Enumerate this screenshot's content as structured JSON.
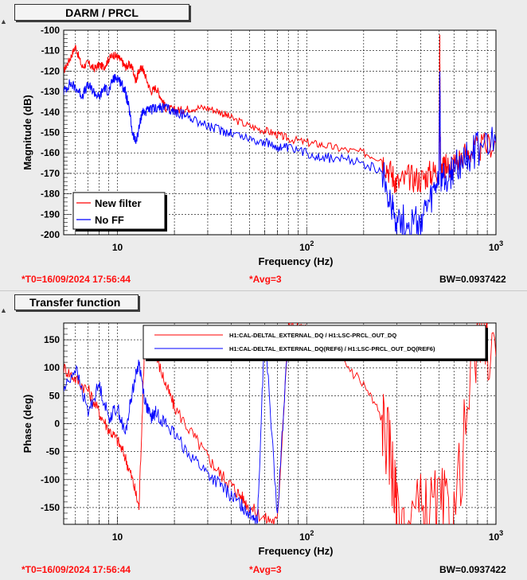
{
  "top_panel": {
    "title": "DARM / PRCL",
    "footer": {
      "t0": "*T0=16/09/2024 17:56:44",
      "avg": "*Avg=3",
      "bw": "BW=0.0937422"
    }
  },
  "bottom_panel": {
    "title": "Transfer function",
    "footer": {
      "t0": "*T0=16/09/2024 17:56:44",
      "avg": "*Avg=3",
      "bw": "BW=0.0937422"
    }
  },
  "colors": {
    "series_new": "#ff0000",
    "series_ref": "#0000ff",
    "grid": "#000000"
  },
  "icons": {
    "corner": "triangle-up-icon"
  },
  "chart_data": [
    {
      "type": "line",
      "xscale": "log",
      "xlabel": "Frequency (Hz)",
      "ylabel": "Magnitude (dB)",
      "xlim": [
        5.2,
        1000
      ],
      "ylim": [
        -200,
        -100
      ],
      "xticks": [
        "10",
        "10²",
        "10³"
      ],
      "yticks": [
        "-100",
        "-110",
        "-120",
        "-130",
        "-140",
        "-150",
        "-160",
        "-170",
        "-180",
        "-190",
        "-200"
      ],
      "grid": true,
      "legend_position": "bottom-left",
      "series": [
        {
          "name": "New filter",
          "color": "#ff0000",
          "x": [
            5.2,
            5.6,
            6,
            6.5,
            7,
            7.5,
            8,
            8.5,
            9,
            9.5,
            10,
            10.5,
            11,
            11.5,
            12,
            12.5,
            13,
            13.5,
            14,
            15,
            16,
            17,
            18,
            20,
            22,
            25,
            30,
            35,
            40,
            50,
            60,
            70,
            80,
            100,
            120,
            150,
            200,
            250,
            280,
            300,
            350,
            400,
            450,
            500,
            505,
            510,
            550,
            600,
            700,
            800,
            1000
          ],
          "y": [
            -120,
            -114,
            -108,
            -118,
            -116,
            -119,
            -117,
            -118,
            -114,
            -112,
            -113,
            -115,
            -118,
            -117,
            -118,
            -125,
            -120,
            -118,
            -122,
            -130,
            -128,
            -133,
            -138,
            -139,
            -139,
            -138,
            -138,
            -140,
            -143,
            -147,
            -149,
            -151,
            -153,
            -155,
            -156,
            -158,
            -160,
            -163,
            -170,
            -175,
            -172,
            -173,
            -170,
            -168,
            -106,
            -168,
            -167,
            -165,
            -160,
            -158,
            -155
          ]
        },
        {
          "name": "No FF",
          "color": "#0000ff",
          "x": [
            5.2,
            5.6,
            6,
            6.5,
            7,
            7.5,
            8,
            8.5,
            9,
            9.5,
            10,
            10.5,
            11,
            11.5,
            12,
            12.5,
            13,
            13.5,
            14,
            15,
            16,
            17,
            18,
            20,
            22,
            25,
            30,
            35,
            40,
            50,
            60,
            70,
            80,
            100,
            120,
            150,
            200,
            250,
            280,
            300,
            350,
            400,
            450,
            500,
            505,
            510,
            550,
            600,
            700,
            800,
            1000
          ],
          "y": [
            -130,
            -126,
            -128,
            -132,
            -127,
            -130,
            -133,
            -128,
            -130,
            -124,
            -123,
            -126,
            -130,
            -138,
            -150,
            -155,
            -148,
            -140,
            -140,
            -139,
            -138,
            -138,
            -138,
            -140,
            -141,
            -143,
            -147,
            -149,
            -150,
            -153,
            -155,
            -157,
            -158,
            -160,
            -162,
            -163,
            -165,
            -170,
            -185,
            -192,
            -195,
            -193,
            -185,
            -172,
            -125,
            -172,
            -172,
            -168,
            -162,
            -158,
            -155
          ]
        }
      ]
    },
    {
      "type": "line",
      "xscale": "log",
      "xlabel": "Frequency (Hz)",
      "ylabel": "Phase (deg)",
      "xlim": [
        5.2,
        1000
      ],
      "ylim": [
        -180,
        180
      ],
      "xticks": [
        "10",
        "10²",
        "10³"
      ],
      "yticks": [
        "150",
        "100",
        "50",
        "0",
        "-50",
        "-100",
        "-150"
      ],
      "grid": true,
      "legend_position": "top-right",
      "series": [
        {
          "name": "H1:CAL-DELTAL_EXTERNAL_DQ / H1:LSC-PRCL_OUT_DQ",
          "color": "#ff0000",
          "x": [
            5.2,
            6,
            7,
            8,
            9,
            10,
            11,
            12,
            13,
            14,
            15,
            16,
            18,
            20,
            25,
            30,
            35,
            40,
            45,
            50,
            60,
            70,
            80,
            90,
            100,
            120,
            150,
            200,
            250,
            280,
            300,
            400,
            500,
            600,
            800,
            1000
          ],
          "y": [
            100,
            80,
            60,
            20,
            -10,
            -30,
            -60,
            -100,
            -150,
            170,
            140,
            120,
            70,
            30,
            -20,
            -60,
            -90,
            -110,
            -130,
            -150,
            -170,
            -175,
            175,
            170,
            165,
            150,
            120,
            70,
            10,
            -60,
            -170,
            -160,
            -150,
            -170,
            160,
            120
          ]
        },
        {
          "name": "H1:CAL-DELTAL_EXTERNAL_DQ(REF6) / H1:LSC-PRCL_OUT_DQ(REF6)",
          "color": "#0000ff",
          "x": [
            5.2,
            6,
            7,
            8,
            9,
            10,
            11,
            12,
            13,
            14,
            15,
            16,
            18,
            20,
            25,
            30,
            35,
            40,
            45,
            50,
            55,
            60,
            70,
            80
          ],
          "y": [
            60,
            100,
            20,
            70,
            10,
            30,
            -20,
            60,
            110,
            40,
            10,
            20,
            0,
            -20,
            -60,
            -90,
            -110,
            -130,
            -145,
            -160,
            -170,
            175,
            -170,
            170
          ]
        }
      ]
    }
  ]
}
